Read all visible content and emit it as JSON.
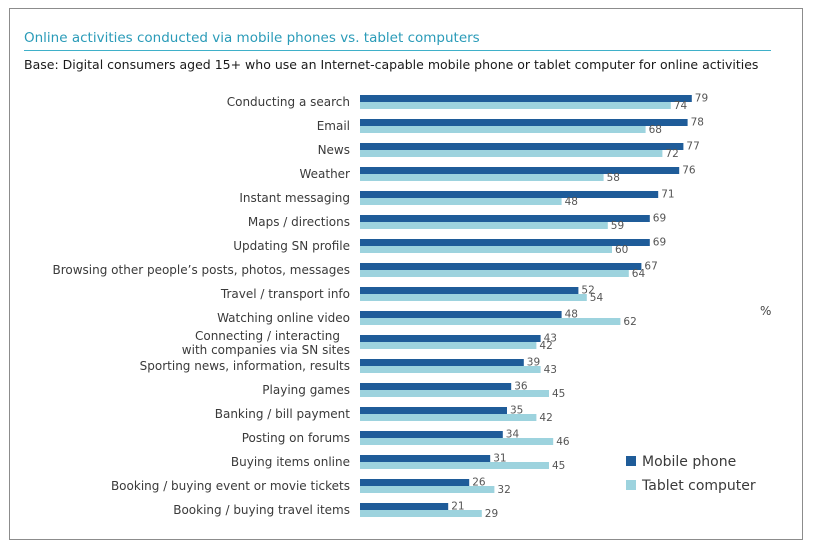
{
  "chart_data": {
    "type": "bar",
    "orientation": "horizontal",
    "title": "Online activities conducted via mobile phones vs. tablet computers",
    "subtitle": "Base: Digital consumers aged 15+ who use an Internet-capable mobile phone or tablet computer for online activities",
    "unit": "%",
    "xlim": [
      0,
      100
    ],
    "grid": false,
    "legend_position": "bottom-right",
    "categories": [
      [
        "Conducting a search"
      ],
      [
        "Email"
      ],
      [
        "News"
      ],
      [
        "Weather"
      ],
      [
        "Instant messaging"
      ],
      [
        "Maps / directions"
      ],
      [
        "Updating SN profile"
      ],
      [
        "Browsing other people’s posts, photos, messages"
      ],
      [
        "Travel / transport info"
      ],
      [
        "Watching online video"
      ],
      [
        "Connecting / interacting",
        "with companies via SN sites"
      ],
      [
        "Sporting news, information, results"
      ],
      [
        "Playing games"
      ],
      [
        "Banking / bill payment"
      ],
      [
        "Posting on forums"
      ],
      [
        "Buying items online"
      ],
      [
        "Booking / buying event or movie tickets"
      ],
      [
        "Booking / buying travel items"
      ]
    ],
    "series": [
      {
        "name": "Mobile phone",
        "color": "#1f5c99",
        "values": [
          79,
          78,
          77,
          76,
          71,
          69,
          69,
          67,
          52,
          48,
          43,
          39,
          36,
          35,
          34,
          31,
          26,
          21
        ]
      },
      {
        "name": "Tablet computer",
        "color": "#9dd3de",
        "values": [
          74,
          68,
          72,
          58,
          48,
          59,
          60,
          64,
          54,
          62,
          42,
          43,
          45,
          42,
          46,
          45,
          32,
          29
        ]
      }
    ]
  }
}
